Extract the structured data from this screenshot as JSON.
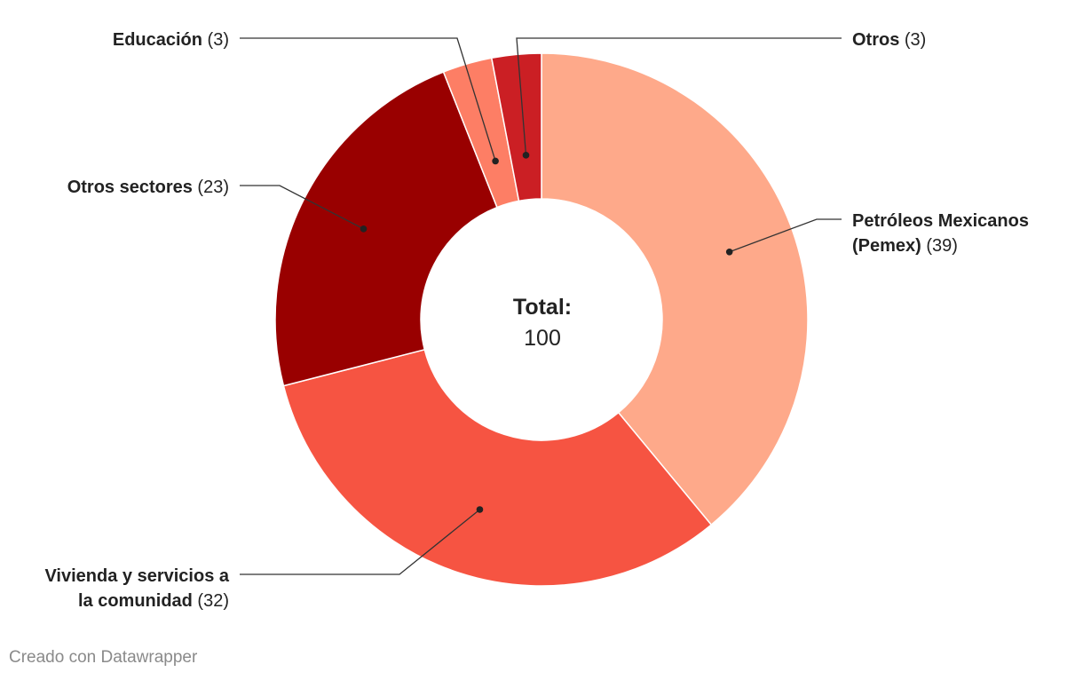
{
  "chart_data": {
    "type": "pie",
    "donut": true,
    "title": "",
    "center_label": {
      "title": "Total:",
      "value": "100"
    },
    "series": [
      {
        "name": "Petróleos Mexicanos (Pemex)",
        "name_lines": [
          "Petróleos Mexicanos",
          "(Pemex)"
        ],
        "value": 39,
        "display_value": "(39)",
        "color": "#fea98a"
      },
      {
        "name": "Vivienda y servicios a la comunidad",
        "name_lines": [
          "Vivienda y servicios a",
          "la comunidad"
        ],
        "value": 32,
        "display_value": "(32)",
        "color": "#f65442"
      },
      {
        "name": "Otros sectores",
        "name_lines": [
          "Otros sectores"
        ],
        "value": 23,
        "display_value": "(23)",
        "color": "#990000"
      },
      {
        "name": "Educación",
        "name_lines": [
          "Educación"
        ],
        "value": 3,
        "display_value": "(3)",
        "color": "#fd7e65"
      },
      {
        "name": "Otros",
        "name_lines": [
          "Otros"
        ],
        "value": 3,
        "display_value": "(3)",
        "color": "#cb1f24"
      }
    ]
  },
  "footer": {
    "credit": "Creado con Datawrapper"
  }
}
